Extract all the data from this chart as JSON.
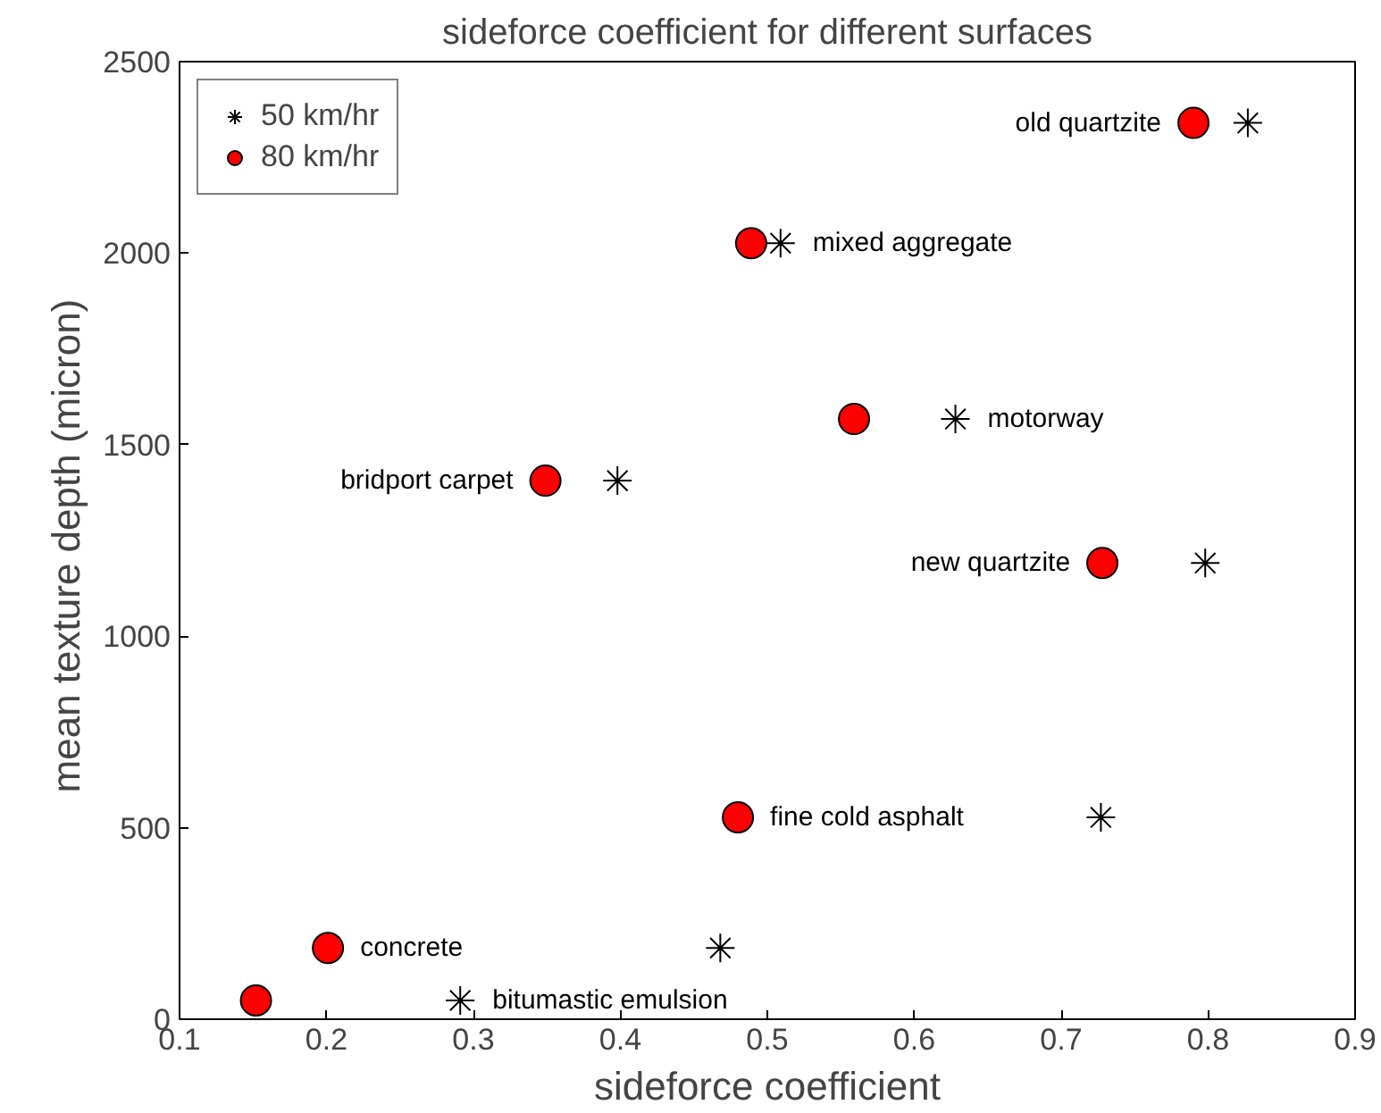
{
  "chart_data": {
    "type": "scatter",
    "title": "sideforce coefficient for different surfaces",
    "xlabel": "sideforce coefficient",
    "ylabel": "mean  texture depth (micron)",
    "xlim": [
      0.1,
      0.9
    ],
    "ylim": [
      0,
      2500
    ],
    "xticks": [
      0.1,
      0.2,
      0.3,
      0.4,
      0.5,
      0.6,
      0.7,
      0.8,
      0.9
    ],
    "yticks": [
      0,
      500,
      1000,
      1500,
      2000,
      2500
    ],
    "grid": false,
    "legend": "top left",
    "series": [
      {
        "name": "50 km/hr",
        "color": "#000000",
        "marker": "cross",
        "x": [
          0.827,
          0.509,
          0.628,
          0.398,
          0.798,
          0.727,
          0.468,
          0.291
        ],
        "values": [
          2340,
          2026,
          1567,
          1406,
          1191,
          527,
          186,
          49
        ]
      },
      {
        "name": "80 km/hr",
        "color": "#ff0000",
        "marker": "circle",
        "x": [
          0.79,
          0.489,
          0.559,
          0.349,
          0.728,
          0.48,
          0.201,
          0.152
        ],
        "values": [
          2340,
          2026,
          1567,
          1406,
          1191,
          527,
          186,
          49
        ]
      }
    ],
    "annotations": [
      {
        "text": "old quartzite",
        "x": 0.79,
        "y": 2340
      },
      {
        "text": "mixed aggregate",
        "x": 0.509,
        "y": 2026
      },
      {
        "text": "motorway",
        "x": 0.628,
        "y": 1567
      },
      {
        "text": "bridport carpet",
        "x": 0.349,
        "y": 1406
      },
      {
        "text": "new quartzite",
        "x": 0.728,
        "y": 1191
      },
      {
        "text": "fine cold asphalt",
        "x": 0.48,
        "y": 527
      },
      {
        "text": "concrete",
        "x": 0.201,
        "y": 186
      },
      {
        "text": "bitumastic emulsion",
        "x": 0.291,
        "y": 49
      }
    ]
  }
}
